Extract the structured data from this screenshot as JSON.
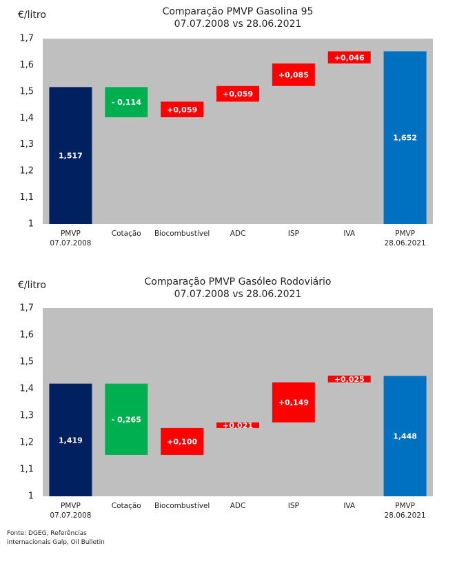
{
  "chart_data": [
    {
      "type": "waterfall",
      "title": "Comparação PMVP Gasolina 95",
      "subtitle": "07.07.2008 vs 28.06.2021",
      "y_label": "€/litro",
      "categories": [
        "PMVP 07.07.2008",
        "Cotação",
        "Biocombustível",
        "ADC",
        "ISP",
        "IVA",
        "PMVP 28.06.2021"
      ],
      "measures": [
        "absolute",
        "relative",
        "relative",
        "relative",
        "relative",
        "relative",
        "absolute"
      ],
      "values": [
        1.517,
        -0.114,
        0.059,
        0.059,
        0.085,
        0.046,
        1.652
      ],
      "value_labels": [
        "1,517",
        "- 0,114",
        "+0,059",
        "+0,059",
        "+0,085",
        "+0,046",
        "1,652"
      ],
      "colors": [
        "#002060",
        "#00b050",
        "#ff0000",
        "#ff0000",
        "#ff0000",
        "#ff0000",
        "#0070c0"
      ],
      "ylim": [
        1,
        1.7
      ],
      "yticks": [
        1,
        {
          "value": 1.1,
          "label": "1,1"
        },
        {
          "value": 1.2,
          "label": "1,2"
        },
        {
          "value": 1.3,
          "label": "1,3"
        },
        {
          "value": 1.4,
          "label": "1,4"
        },
        {
          "value": 1.5,
          "label": "1,5"
        },
        {
          "value": 1.6,
          "label": "1,6"
        },
        {
          "value": 1.7,
          "label": "1,7"
        }
      ]
    },
    {
      "type": "waterfall",
      "title": "Comparação PMVP Gasóleo Rodoviário",
      "subtitle": "07.07.2008 vs 28.06.2021",
      "y_label": "€/litro",
      "categories": [
        "PMVP 07.07.2008",
        "Cotação",
        "Biocombustível",
        "ADC",
        "ISP",
        "IVA",
        "PMVP 28.06.2021"
      ],
      "measures": [
        "absolute",
        "relative",
        "relative",
        "relative",
        "relative",
        "relative",
        "absolute"
      ],
      "values": [
        1.419,
        -0.265,
        0.1,
        0.021,
        0.149,
        0.025,
        1.448
      ],
      "value_labels": [
        "1,419",
        "- 0,265",
        "+0,100",
        "+0,021",
        "+0,149",
        "+0,025",
        "1,448"
      ],
      "colors": [
        "#002060",
        "#00b050",
        "#ff0000",
        "#ff0000",
        "#ff0000",
        "#ff0000",
        "#0070c0"
      ],
      "ylim": [
        1,
        1.7
      ],
      "yticks": [
        1,
        {
          "value": 1.1,
          "label": "1,1"
        },
        {
          "value": 1.2,
          "label": "1,2"
        },
        {
          "value": 1.3,
          "label": "1,3"
        },
        {
          "value": 1.4,
          "label": "1,4"
        },
        {
          "value": 1.5,
          "label": "1,5"
        },
        {
          "value": 1.6,
          "label": "1,6"
        },
        {
          "value": 1.7,
          "label": "1,7"
        }
      ]
    }
  ],
  "source": "Fonte: DGEG, Referências internacionais Galp, Oil Bulletin"
}
